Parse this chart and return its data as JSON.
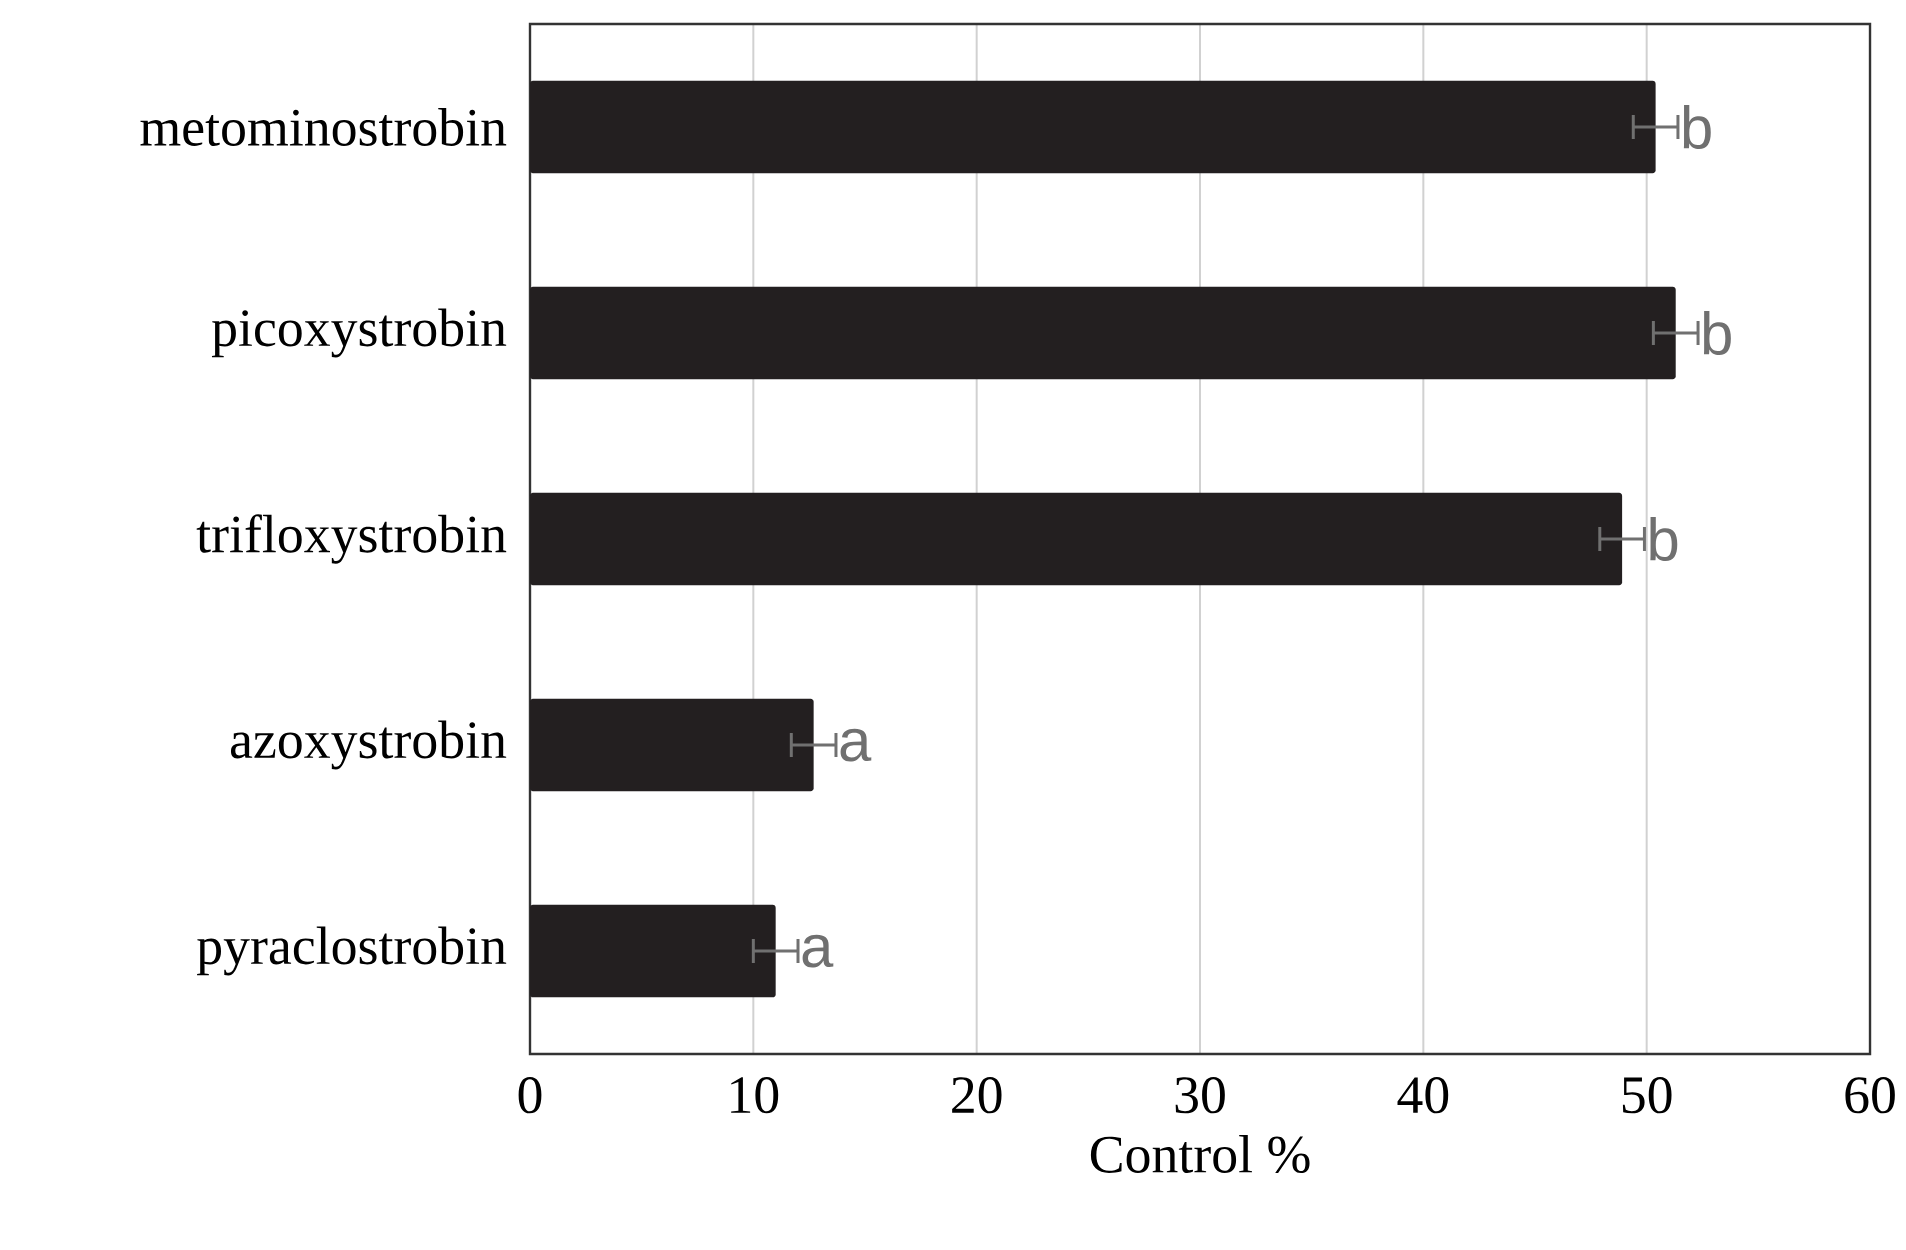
{
  "chart_data": {
    "type": "bar",
    "orientation": "horizontal",
    "xlabel": "Control %",
    "categories": [
      "metominostrobin",
      "picoxystrobin",
      "trifloxystrobin",
      "azoxystrobin",
      "pyraclostrobin"
    ],
    "values": [
      50.4,
      51.3,
      48.9,
      12.7,
      11.0
    ],
    "errors": [
      1.0,
      1.0,
      1.0,
      1.0,
      1.0
    ],
    "color": "#231f20",
    "xlim": [
      0,
      60
    ],
    "xticks": [
      0,
      10,
      20,
      30,
      40,
      50,
      60
    ],
    "grid": "x",
    "annotations": [
      {
        "text": "b",
        "x": 50.4,
        "y": "metominostrobin"
      },
      {
        "text": "b",
        "x": 51.3,
        "y": "picoxystrobin"
      },
      {
        "text": "b",
        "x": 48.9,
        "y": "trifloxystrobin"
      },
      {
        "text": "a",
        "x": 12.7,
        "y": "azoxystrobin"
      },
      {
        "text": "a",
        "x": 11.0,
        "y": "pyraclostrobin"
      }
    ]
  }
}
